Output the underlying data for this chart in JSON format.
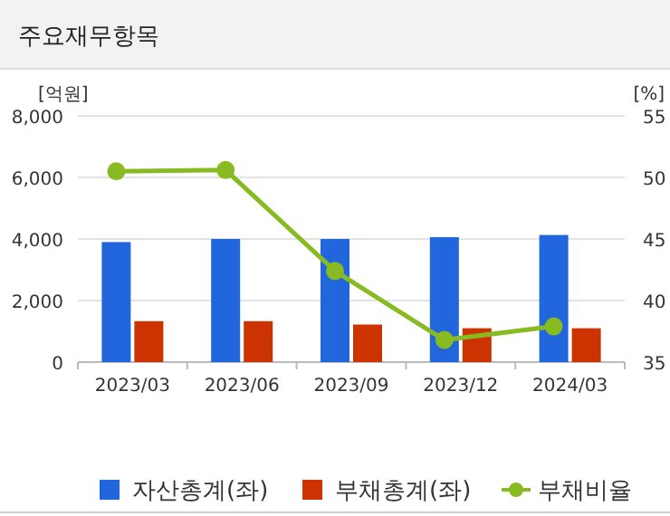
{
  "chart_data": {
    "type": "bar",
    "title": "주요재무항목",
    "ylabel": "[억원]",
    "y2label": "[%]",
    "categories": [
      "2023/03",
      "2023/06",
      "2023/09",
      "2023/12",
      "2024/03"
    ],
    "series": [
      {
        "name": "자산총계(좌)",
        "color": "#2266dd",
        "values": [
          3900,
          4000,
          4000,
          4060,
          4130
        ]
      },
      {
        "name": "부채총계(좌)",
        "color": "#cc3300",
        "values": [
          1330,
          1330,
          1220,
          1100,
          1100
        ]
      },
      {
        "name": "부채비율",
        "type": "line",
        "axis": "y2",
        "color": "#88bb22",
        "marker": "circle",
        "values": [
          50.5,
          50.6,
          42.4,
          36.8,
          37.9
        ]
      }
    ],
    "ylim": [
      0,
      8000
    ],
    "yticks": [
      {
        "value": 0,
        "label": "0"
      },
      {
        "value": 2000,
        "label": "2,000"
      },
      {
        "value": 4000,
        "label": "4,000"
      },
      {
        "value": 6000,
        "label": "6,000"
      },
      {
        "value": 8000,
        "label": "8,000"
      }
    ],
    "y2lim": [
      35,
      55
    ],
    "y2ticks": [
      35,
      40,
      45,
      50,
      55
    ],
    "grid": "y",
    "legend": "bottom"
  }
}
